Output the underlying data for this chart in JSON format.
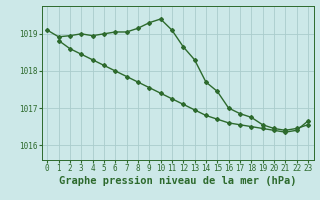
{
  "line1_x": [
    0,
    1,
    2,
    3,
    4,
    5,
    6,
    7,
    8,
    9,
    10,
    11,
    12,
    13,
    14,
    15,
    16,
    17,
    18,
    19,
    20,
    21,
    22,
    23
  ],
  "line1_y": [
    1019.1,
    1018.92,
    1018.95,
    1019.0,
    1018.95,
    1019.0,
    1019.05,
    1019.05,
    1019.15,
    1019.3,
    1019.4,
    1019.1,
    1018.65,
    1018.3,
    1017.7,
    1017.45,
    1017.0,
    1016.85,
    1016.75,
    1016.55,
    1016.45,
    1016.4,
    1016.45,
    1016.55
  ],
  "line2_x": [
    1,
    2,
    3,
    4,
    5,
    6,
    7,
    8,
    9,
    10,
    11,
    12,
    13,
    14,
    15,
    16,
    17,
    18,
    19,
    20,
    21,
    22,
    23
  ],
  "line2_y": [
    1018.82,
    1018.6,
    1018.45,
    1018.3,
    1018.15,
    1018.0,
    1017.85,
    1017.7,
    1017.55,
    1017.4,
    1017.25,
    1017.1,
    1016.95,
    1016.8,
    1016.7,
    1016.6,
    1016.55,
    1016.5,
    1016.45,
    1016.4,
    1016.35,
    1016.4,
    1016.65
  ],
  "line_color": "#2d6a2d",
  "bg_color": "#cce8e8",
  "grid_color": "#aacccc",
  "axis_color": "#2d6a2d",
  "xlabel": "Graphe pression niveau de la mer (hPa)",
  "ylim": [
    1015.6,
    1019.75
  ],
  "xlim": [
    -0.5,
    23.5
  ],
  "yticks": [
    1016,
    1017,
    1018,
    1019
  ],
  "xticks": [
    0,
    1,
    2,
    3,
    4,
    5,
    6,
    7,
    8,
    9,
    10,
    11,
    12,
    13,
    14,
    15,
    16,
    17,
    18,
    19,
    20,
    21,
    22,
    23
  ],
  "tick_fontsize": 5.5,
  "xlabel_fontsize": 7.5,
  "linewidth": 1.0,
  "marker": "D",
  "markersize": 2.0
}
